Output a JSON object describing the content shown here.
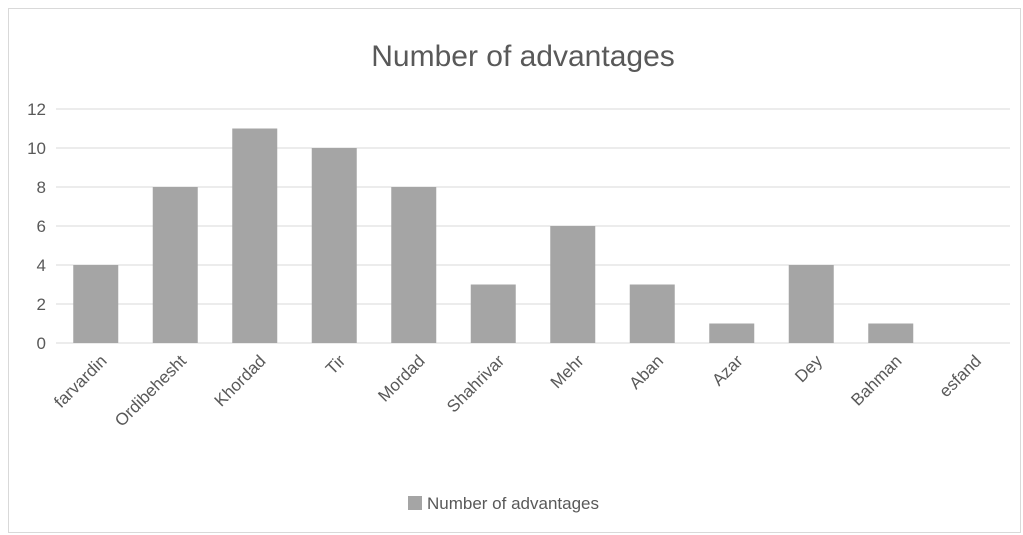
{
  "chart_data": {
    "type": "bar",
    "title": "Number of advantages",
    "categories": [
      "farvardin",
      "Ordibehesht",
      "Khordad",
      "Tir",
      "Mordad",
      "Shahrivar",
      "Mehr",
      "Aban",
      "Azar",
      "Dey",
      "Bahman",
      "esfand"
    ],
    "series": [
      {
        "name": "Number of advantages",
        "values": [
          4,
          8,
          11,
          10,
          8,
          3,
          6,
          3,
          1,
          4,
          1,
          0
        ],
        "color": "#a5a5a5"
      }
    ],
    "ylim": [
      0,
      12
    ],
    "yticks": [
      0,
      2,
      4,
      6,
      8,
      10,
      12
    ],
    "grid": true,
    "legend_position": "bottom",
    "colors": {
      "bar": "#a5a5a5",
      "grid": "#d9d9d9",
      "text": "#595959",
      "border": "#d9d9d9"
    }
  }
}
